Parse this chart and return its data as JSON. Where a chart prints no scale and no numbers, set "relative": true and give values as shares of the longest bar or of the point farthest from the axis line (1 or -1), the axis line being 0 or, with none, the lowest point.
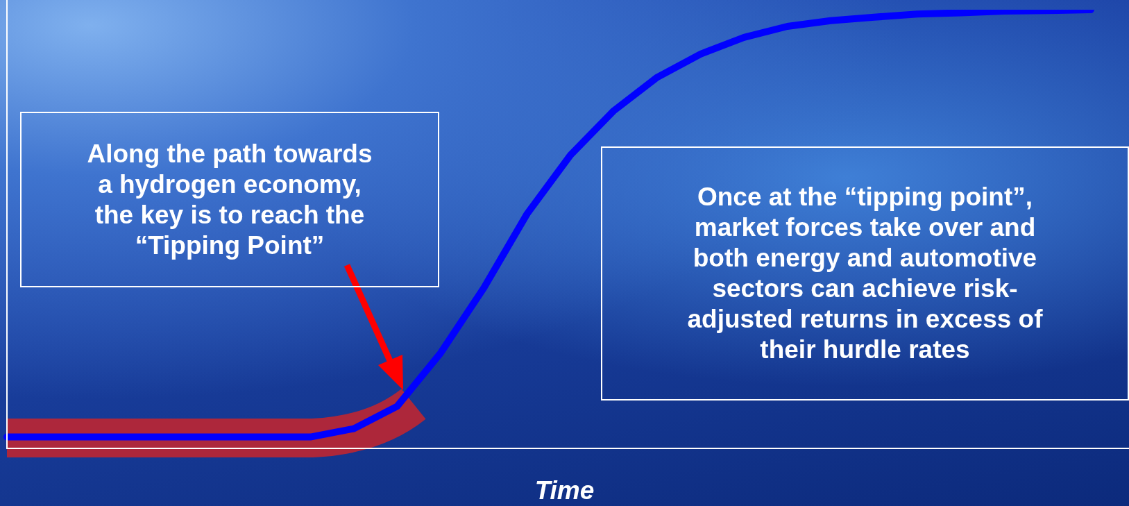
{
  "chart_data": {
    "type": "line",
    "relative": true,
    "xlabel": "Time",
    "categories": [
      null,
      null,
      null,
      null,
      null,
      null,
      null,
      null,
      null,
      null,
      null,
      null,
      null,
      null,
      null,
      null,
      null,
      null,
      null,
      null,
      null,
      null,
      null,
      null,
      null,
      null
    ],
    "series": [
      {
        "color": "#0000ff",
        "values": [
          0.026,
          0.026,
          0.026,
          0.026,
          0.026,
          0.026,
          0.026,
          0.026,
          0.045,
          0.096,
          0.217,
          0.366,
          0.535,
          0.669,
          0.77,
          0.846,
          0.899,
          0.937,
          0.962,
          0.975,
          0.983,
          0.99,
          0.993,
          0.997,
          0.998,
          1
        ]
      }
    ],
    "annotations": [
      "Along the path towards\na hydrogen economy,\nthe key is to reach  the\n“Tipping Point”",
      "Once at the “tipping point”,\nmarket forces take over and\nboth energy and automotive\nsectors can achieve risk-\nadjusted returns in excess of\ntheir hurdle rates"
    ],
    "marker": "none",
    "legend": false
  }
}
